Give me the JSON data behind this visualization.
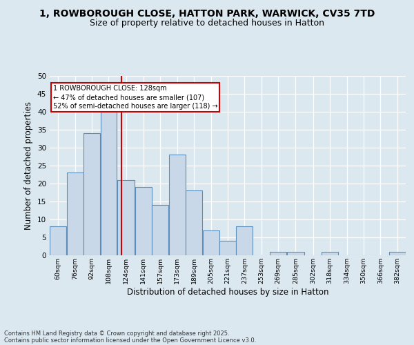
{
  "title1": "1, ROWBOROUGH CLOSE, HATTON PARK, WARWICK, CV35 7TD",
  "title2": "Size of property relative to detached houses in Hatton",
  "xlabel": "Distribution of detached houses by size in Hatton",
  "ylabel": "Number of detached properties",
  "bins": [
    "60sqm",
    "76sqm",
    "92sqm",
    "108sqm",
    "124sqm",
    "141sqm",
    "157sqm",
    "173sqm",
    "189sqm",
    "205sqm",
    "221sqm",
    "237sqm",
    "253sqm",
    "269sqm",
    "285sqm",
    "302sqm",
    "318sqm",
    "334sqm",
    "350sqm",
    "366sqm",
    "382sqm"
  ],
  "values": [
    8,
    23,
    34,
    40,
    21,
    19,
    14,
    28,
    18,
    7,
    4,
    8,
    0,
    1,
    1,
    0,
    1,
    0,
    0,
    0,
    1
  ],
  "bin_edges": [
    60,
    76,
    92,
    108,
    124,
    141,
    157,
    173,
    189,
    205,
    221,
    237,
    253,
    269,
    285,
    302,
    318,
    334,
    350,
    366,
    382,
    398
  ],
  "bar_color": "#c8d8e8",
  "bar_edge_color": "#5b8db8",
  "vline_x": 128,
  "vline_color": "#cc0000",
  "annotation_title": "1 ROWBOROUGH CLOSE: 128sqm",
  "annotation_line1": "← 47% of detached houses are smaller (107)",
  "annotation_line2": "52% of semi-detached houses are larger (118) →",
  "annotation_box_color": "#ffffff",
  "annotation_box_edge": "#cc0000",
  "ylim": [
    0,
    50
  ],
  "yticks": [
    0,
    5,
    10,
    15,
    20,
    25,
    30,
    35,
    40,
    45,
    50
  ],
  "background_color": "#dce8f0",
  "footer1": "Contains HM Land Registry data © Crown copyright and database right 2025.",
  "footer2": "Contains public sector information licensed under the Open Government Licence v3.0.",
  "title1_fontsize": 10,
  "title2_fontsize": 9,
  "xlabel_fontsize": 8.5,
  "ylabel_fontsize": 8.5
}
